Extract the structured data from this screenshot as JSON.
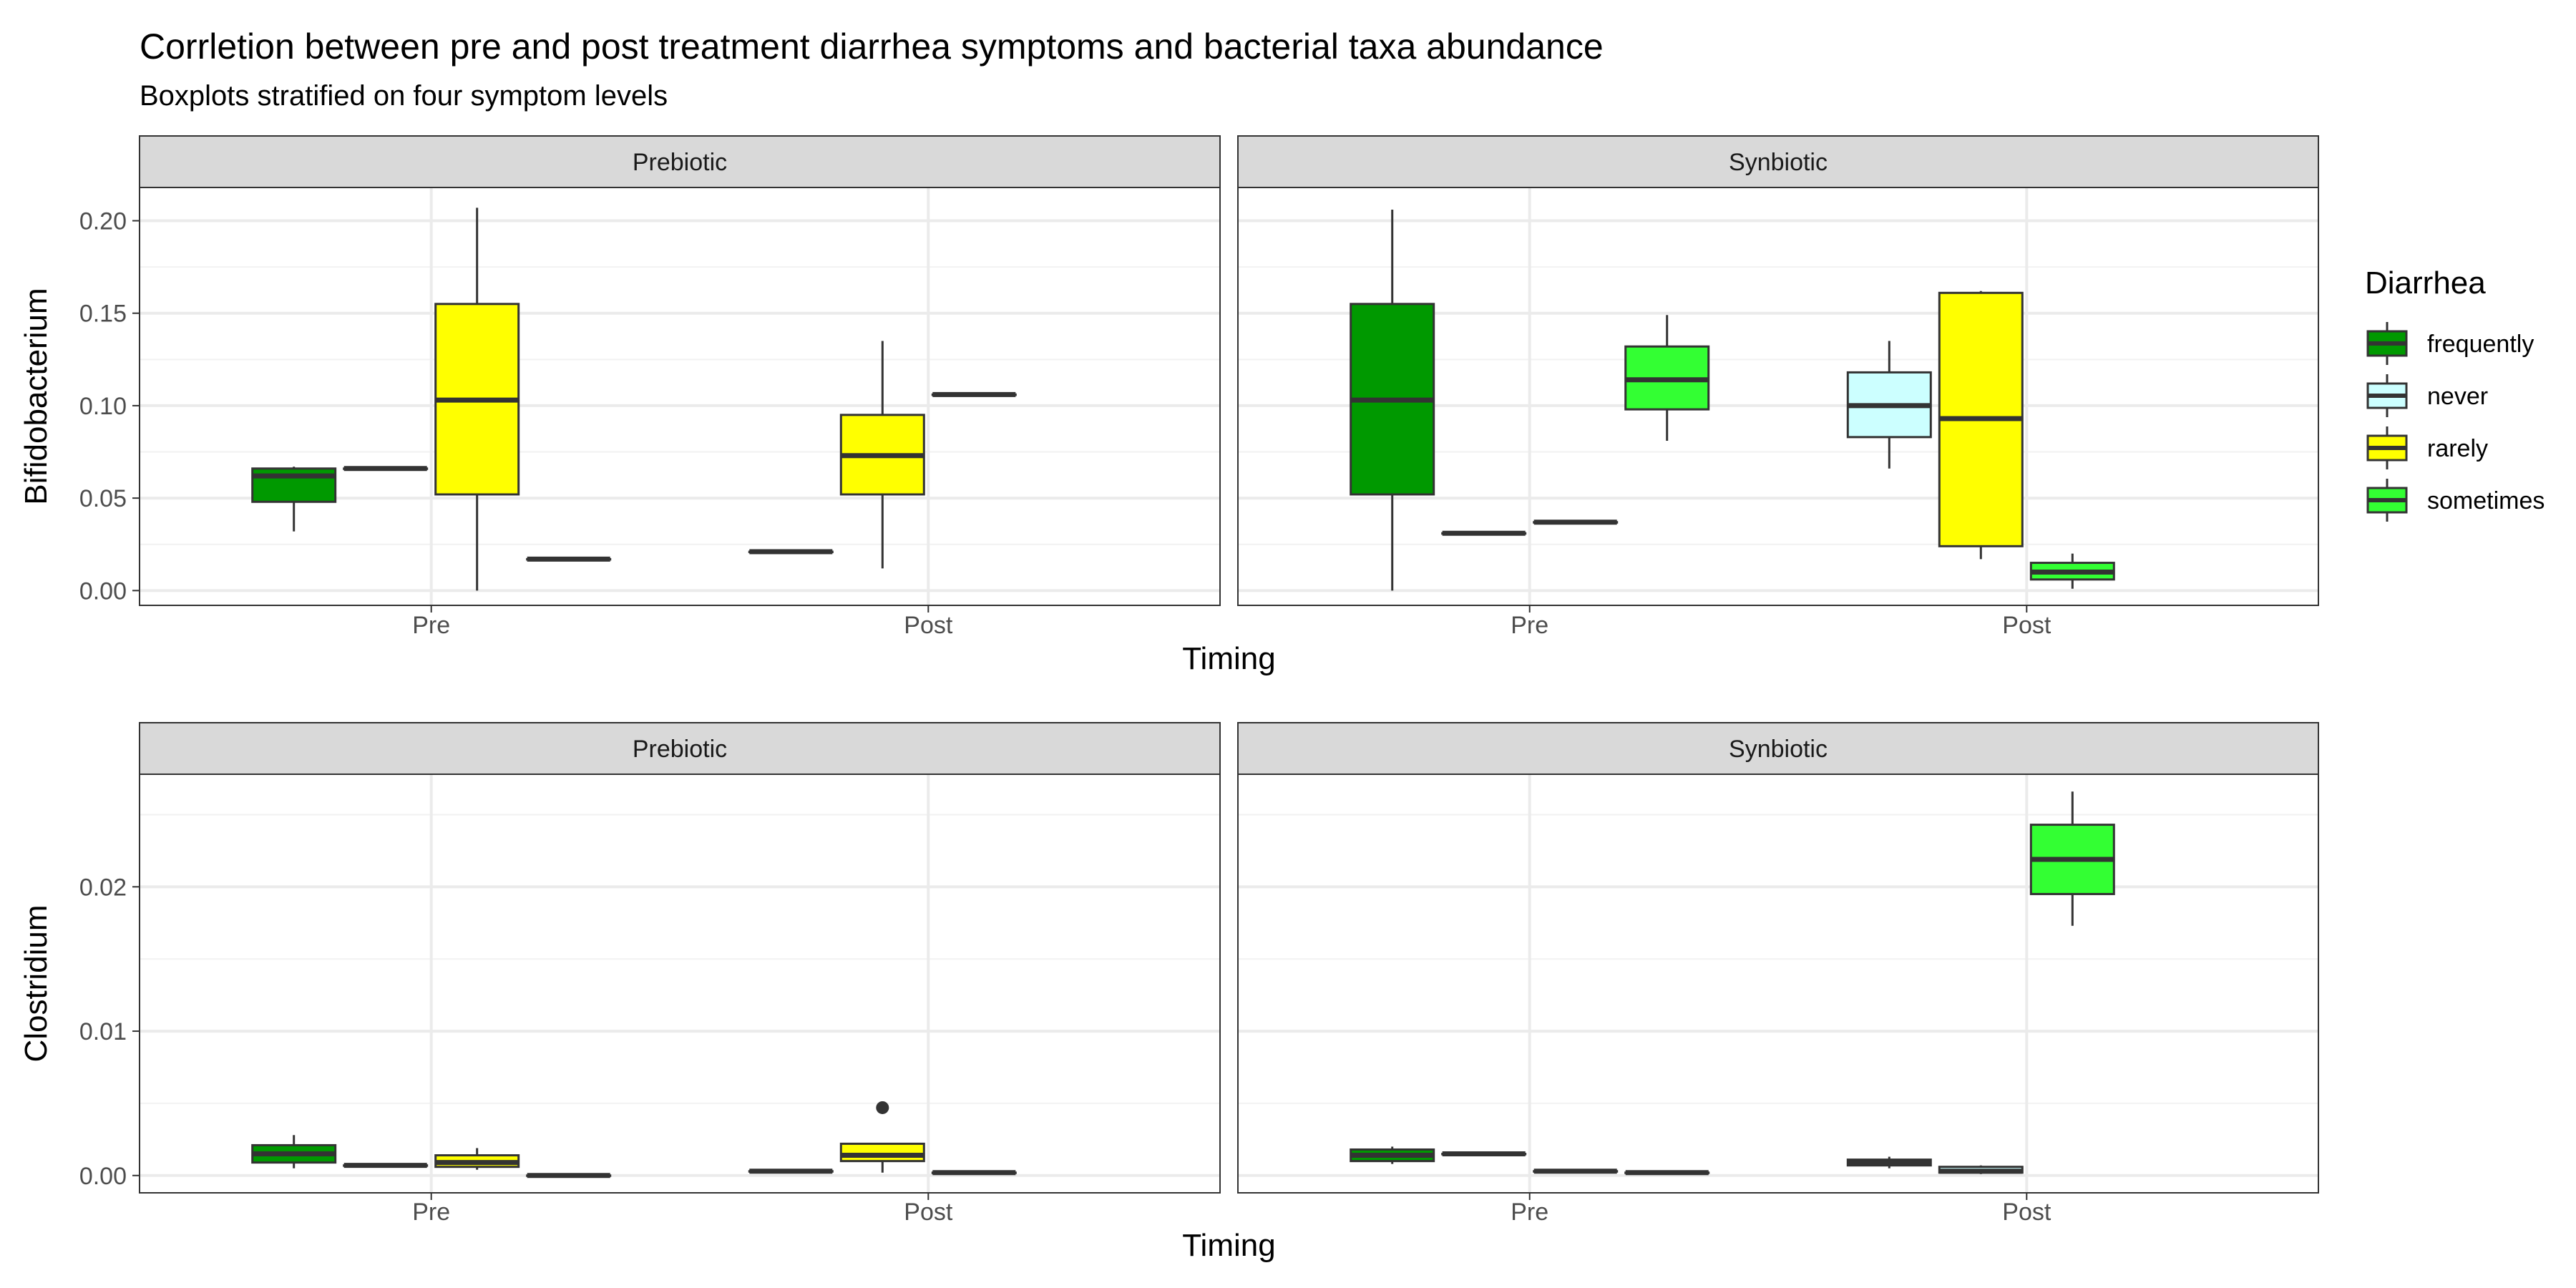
{
  "title": "Corrletion between pre and post treatment diarrhea symptoms and bacterial taxa abundance",
  "subtitle": "Boxplots stratified on four symptom levels",
  "legend": {
    "title": "Diarrhea",
    "position": "right",
    "items": [
      {
        "label": "frequently",
        "color": "#009900"
      },
      {
        "label": "never",
        "color": "#CCFFFF"
      },
      {
        "label": "rarely",
        "color": "#FFFF00"
      },
      {
        "label": "sometimes",
        "color": "#33FF33"
      }
    ]
  },
  "chart_data": {
    "type": "boxplot",
    "grid": true,
    "x_categories": [
      "Pre",
      "Post"
    ],
    "facets": [
      "Prebiotic",
      "Synbiotic"
    ],
    "rows": [
      {
        "ylabel": "Bifidobacterium",
        "xlabel": "Timing",
        "ylim": [
          -0.008,
          0.218
        ],
        "yticks": [
          0.0,
          0.05,
          0.1,
          0.15,
          0.2
        ],
        "tick_labels": [
          "0.00",
          "0.05",
          "0.10",
          "0.15",
          "0.20"
        ],
        "panels": [
          {
            "facet": "Prebiotic",
            "boxes": [
              {
                "timing": "Pre",
                "group": "frequently",
                "slot": 0,
                "whisker_low": 0.032,
                "q1": 0.048,
                "median": 0.062,
                "q3": 0.066,
                "whisker_high": 0.067
              },
              {
                "timing": "Pre",
                "group": "never",
                "slot": 1,
                "whisker_low": 0.066,
                "q1": 0.066,
                "median": 0.066,
                "q3": 0.066,
                "whisker_high": 0.066
              },
              {
                "timing": "Pre",
                "group": "rarely",
                "slot": 2,
                "whisker_low": 0.0,
                "q1": 0.052,
                "median": 0.103,
                "q3": 0.155,
                "whisker_high": 0.207
              },
              {
                "timing": "Pre",
                "group": "sometimes",
                "slot": 3,
                "whisker_low": 0.017,
                "q1": 0.017,
                "median": 0.017,
                "q3": 0.017,
                "whisker_high": 0.017
              },
              {
                "timing": "Post",
                "group": "never",
                "slot": 0,
                "whisker_low": 0.021,
                "q1": 0.021,
                "median": 0.021,
                "q3": 0.021,
                "whisker_high": 0.021
              },
              {
                "timing": "Post",
                "group": "rarely",
                "slot": 1,
                "whisker_low": 0.012,
                "q1": 0.052,
                "median": 0.073,
                "q3": 0.095,
                "whisker_high": 0.135
              },
              {
                "timing": "Post",
                "group": "sometimes",
                "slot": 2,
                "whisker_low": 0.106,
                "q1": 0.106,
                "median": 0.106,
                "q3": 0.106,
                "whisker_high": 0.106
              }
            ]
          },
          {
            "facet": "Synbiotic",
            "boxes": [
              {
                "timing": "Pre",
                "group": "frequently",
                "slot": 0,
                "whisker_low": 0.0,
                "q1": 0.052,
                "median": 0.103,
                "q3": 0.155,
                "whisker_high": 0.206
              },
              {
                "timing": "Pre",
                "group": "never",
                "slot": 1,
                "whisker_low": 0.031,
                "q1": 0.031,
                "median": 0.031,
                "q3": 0.031,
                "whisker_high": 0.031
              },
              {
                "timing": "Pre",
                "group": "rarely",
                "slot": 2,
                "whisker_low": 0.037,
                "q1": 0.037,
                "median": 0.037,
                "q3": 0.037,
                "whisker_high": 0.037
              },
              {
                "timing": "Pre",
                "group": "sometimes",
                "slot": 3,
                "whisker_low": 0.081,
                "q1": 0.098,
                "median": 0.114,
                "q3": 0.132,
                "whisker_high": 0.149
              },
              {
                "timing": "Post",
                "group": "never",
                "slot": 0,
                "whisker_low": 0.066,
                "q1": 0.083,
                "median": 0.1,
                "q3": 0.118,
                "whisker_high": 0.135
              },
              {
                "timing": "Post",
                "group": "rarely",
                "slot": 1,
                "whisker_low": 0.017,
                "q1": 0.024,
                "median": 0.093,
                "q3": 0.161,
                "whisker_high": 0.162
              },
              {
                "timing": "Post",
                "group": "sometimes",
                "slot": 2,
                "whisker_low": 0.001,
                "q1": 0.006,
                "median": 0.01,
                "q3": 0.015,
                "whisker_high": 0.02
              }
            ]
          }
        ]
      },
      {
        "ylabel": "Clostridium",
        "xlabel": "Timing",
        "ylim": [
          -0.0012,
          0.0278
        ],
        "yticks": [
          0.0,
          0.01,
          0.02
        ],
        "tick_labels": [
          "0.00",
          "0.01",
          "0.02"
        ],
        "panels": [
          {
            "facet": "Prebiotic",
            "boxes": [
              {
                "timing": "Pre",
                "group": "frequently",
                "slot": 0,
                "whisker_low": 0.0005,
                "q1": 0.0009,
                "median": 0.0015,
                "q3": 0.0021,
                "whisker_high": 0.0028
              },
              {
                "timing": "Pre",
                "group": "never",
                "slot": 1,
                "whisker_low": 0.0007,
                "q1": 0.0007,
                "median": 0.0007,
                "q3": 0.0007,
                "whisker_high": 0.0007
              },
              {
                "timing": "Pre",
                "group": "rarely",
                "slot": 2,
                "whisker_low": 0.0004,
                "q1": 0.0006,
                "median": 0.0009,
                "q3": 0.0014,
                "whisker_high": 0.0019
              },
              {
                "timing": "Pre",
                "group": "sometimes",
                "slot": 3,
                "whisker_low": 0.0,
                "q1": 0.0,
                "median": 0.0,
                "q3": 0.0,
                "whisker_high": 0.0
              },
              {
                "timing": "Post",
                "group": "never",
                "slot": 0,
                "whisker_low": 0.0003,
                "q1": 0.0003,
                "median": 0.0003,
                "q3": 0.0003,
                "whisker_high": 0.0003
              },
              {
                "timing": "Post",
                "group": "rarely",
                "slot": 1,
                "whisker_low": 0.0002,
                "q1": 0.001,
                "median": 0.0014,
                "q3": 0.0022,
                "whisker_high": 0.0022,
                "outliers": [
                  0.0047
                ]
              },
              {
                "timing": "Post",
                "group": "sometimes",
                "slot": 2,
                "whisker_low": 0.0002,
                "q1": 0.0002,
                "median": 0.0002,
                "q3": 0.0002,
                "whisker_high": 0.0002
              }
            ]
          },
          {
            "facet": "Synbiotic",
            "boxes": [
              {
                "timing": "Pre",
                "group": "frequently",
                "slot": 0,
                "whisker_low": 0.0008,
                "q1": 0.001,
                "median": 0.0014,
                "q3": 0.0018,
                "whisker_high": 0.002
              },
              {
                "timing": "Pre",
                "group": "never",
                "slot": 1,
                "whisker_low": 0.0015,
                "q1": 0.0015,
                "median": 0.0015,
                "q3": 0.0015,
                "whisker_high": 0.0015
              },
              {
                "timing": "Pre",
                "group": "rarely",
                "slot": 2,
                "whisker_low": 0.0003,
                "q1": 0.0003,
                "median": 0.0003,
                "q3": 0.0003,
                "whisker_high": 0.0003
              },
              {
                "timing": "Pre",
                "group": "sometimes",
                "slot": 3,
                "whisker_low": 0.0002,
                "q1": 0.0002,
                "median": 0.0002,
                "q3": 0.0002,
                "whisker_high": 0.0002
              },
              {
                "timing": "Post",
                "group": "frequently",
                "slot": 0,
                "whisker_low": 0.0005,
                "q1": 0.0007,
                "median": 0.0009,
                "q3": 0.0011,
                "whisker_high": 0.0013
              },
              {
                "timing": "Post",
                "group": "never",
                "slot": 1,
                "whisker_low": 0.0001,
                "q1": 0.0002,
                "median": 0.0003,
                "q3": 0.0006,
                "whisker_high": 0.0007
              },
              {
                "timing": "Post",
                "group": "sometimes",
                "slot": 2,
                "whisker_low": 0.0173,
                "q1": 0.0195,
                "median": 0.0219,
                "q3": 0.0243,
                "whisker_high": 0.0266
              }
            ]
          }
        ]
      }
    ]
  }
}
